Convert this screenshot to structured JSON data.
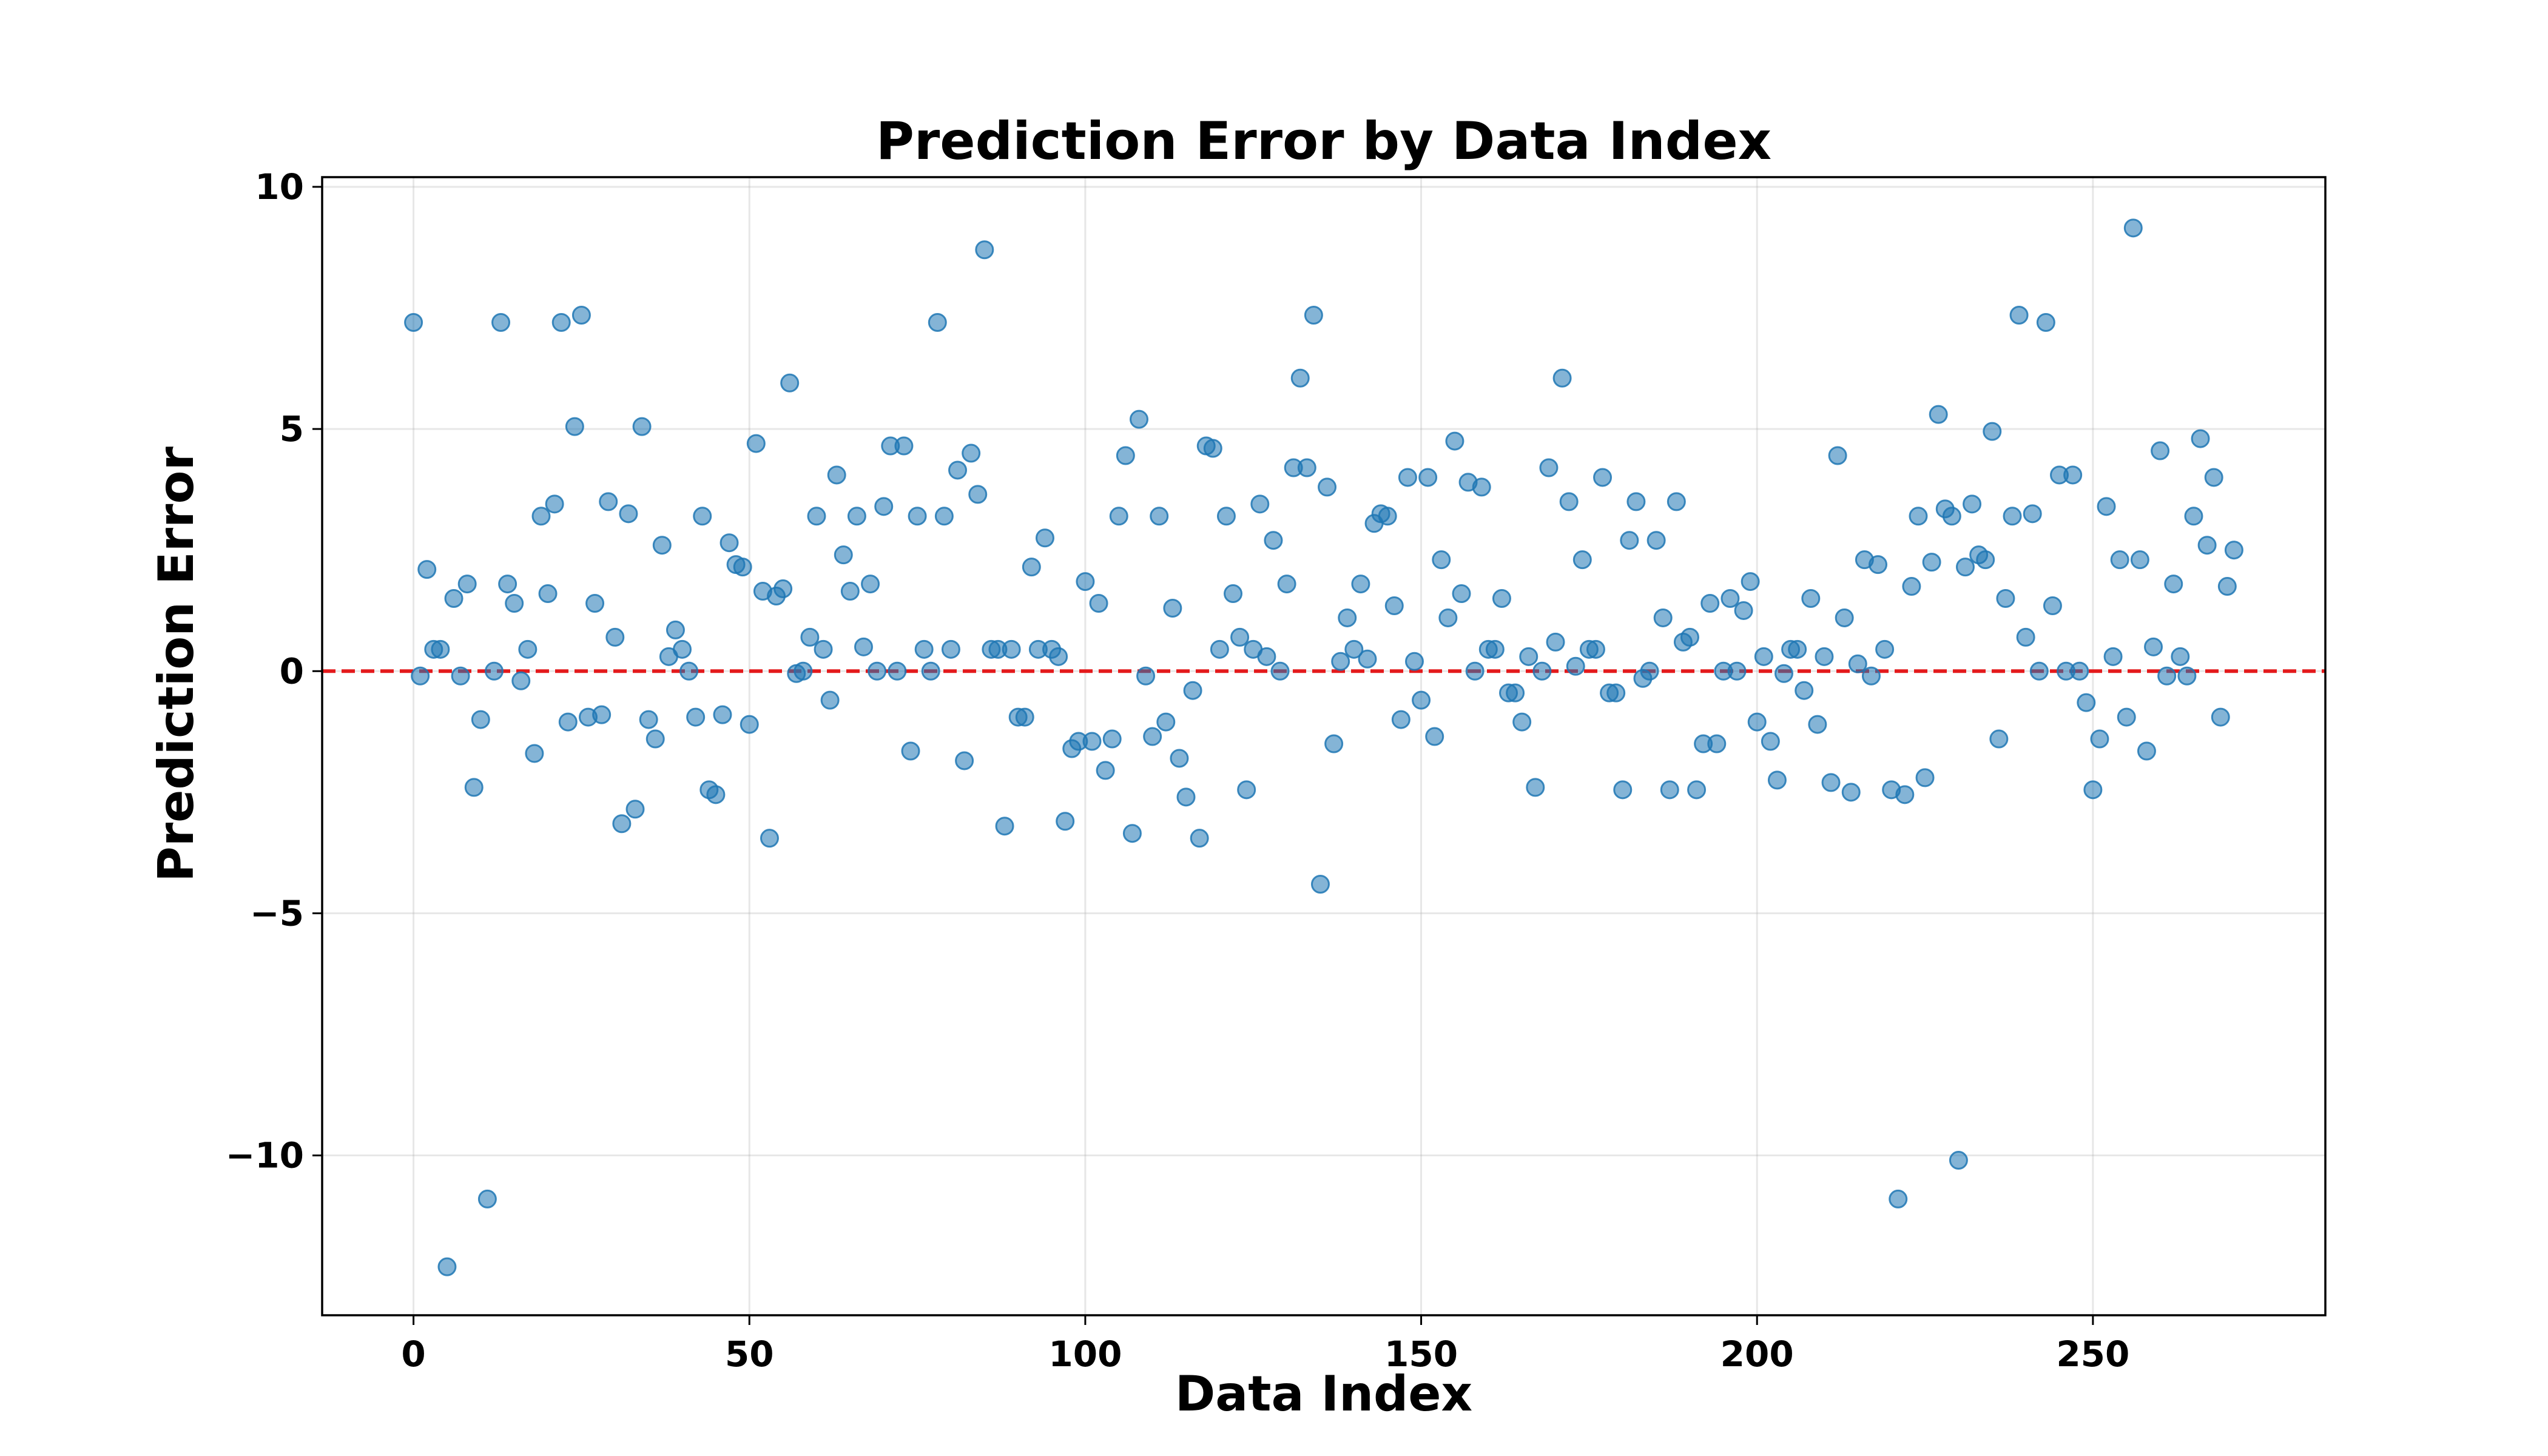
{
  "chart_data": {
    "type": "scatter",
    "title": "Prediction Error by Data Index",
    "xlabel": "Data Index",
    "ylabel": "Prediction Error",
    "xlim": [
      -13.6,
      284.6
    ],
    "ylim": [
      -13.3,
      10.2
    ],
    "xticks": [
      0,
      50,
      100,
      150,
      200,
      250
    ],
    "yticks": [
      -10,
      -5,
      0,
      5,
      10
    ],
    "grid": true,
    "reference_line": {
      "y": 0,
      "style": "dashed",
      "color": "#e41a1c"
    },
    "point_color": "#1f77b4",
    "x": [
      0,
      1,
      2,
      3,
      4,
      5,
      6,
      7,
      8,
      9,
      10,
      11,
      12,
      13,
      14,
      15,
      16,
      17,
      18,
      19,
      20,
      21,
      22,
      23,
      24,
      25,
      26,
      27,
      28,
      29,
      30,
      31,
      32,
      33,
      34,
      35,
      36,
      37,
      38,
      39,
      40,
      41,
      42,
      43,
      44,
      45,
      46,
      47,
      48,
      49,
      50,
      51,
      52,
      53,
      54,
      55,
      56,
      57,
      58,
      59,
      60,
      61,
      62,
      63,
      64,
      65,
      66,
      67,
      68,
      69,
      70,
      71,
      72,
      73,
      74,
      75,
      76,
      77,
      78,
      79,
      80,
      81,
      82,
      83,
      84,
      85,
      86,
      87,
      88,
      89,
      90,
      91,
      92,
      93,
      94,
      95,
      96,
      97,
      98,
      99,
      100,
      101,
      102,
      103,
      104,
      105,
      106,
      107,
      108,
      109,
      110,
      111,
      112,
      113,
      114,
      115,
      116,
      117,
      118,
      119,
      120,
      121,
      122,
      123,
      124,
      125,
      126,
      127,
      128,
      129,
      130,
      131,
      132,
      133,
      134,
      135,
      136,
      137,
      138,
      139,
      140,
      141,
      142,
      143,
      144,
      145,
      146,
      147,
      148,
      149,
      150,
      151,
      152,
      153,
      154,
      155,
      156,
      157,
      158,
      159,
      160,
      161,
      162,
      163,
      164,
      165,
      166,
      167,
      168,
      169,
      170,
      171,
      172,
      173,
      174,
      175,
      176,
      177,
      178,
      179,
      180,
      181,
      182,
      183,
      184,
      185,
      186,
      187,
      188,
      189,
      190,
      191,
      192,
      193,
      194,
      195,
      196,
      197,
      198,
      199,
      200,
      201,
      202,
      203,
      204,
      205,
      206,
      207,
      208,
      209,
      210,
      211,
      212,
      213,
      214,
      215,
      216,
      217,
      218,
      219,
      220,
      221,
      222,
      223,
      224,
      225,
      226,
      227,
      228,
      229,
      230,
      231,
      232,
      233,
      234,
      235,
      236,
      237,
      238,
      239,
      240,
      241,
      242,
      243,
      244,
      245,
      246,
      247,
      248,
      249,
      250,
      251,
      252,
      253,
      254,
      255,
      256,
      257,
      258,
      259,
      260,
      261,
      262,
      263,
      264,
      265,
      266,
      267,
      268,
      269,
      270,
      271
    ],
    "y": [
      7.2,
      -0.1,
      2.1,
      0.45,
      0.45,
      -12.3,
      1.5,
      -0.1,
      1.8,
      -2.4,
      -1.0,
      -10.9,
      0.0,
      7.2,
      1.8,
      1.4,
      -0.2,
      0.45,
      -1.7,
      3.2,
      1.6,
      3.45,
      7.2,
      -1.05,
      5.05,
      7.35,
      -0.95,
      1.4,
      -0.9,
      3.5,
      0.7,
      -3.15,
      3.25,
      -2.85,
      5.05,
      -1.0,
      -1.4,
      2.6,
      0.3,
      0.85,
      0.45,
      0.0,
      -0.95,
      3.2,
      -2.45,
      -2.55,
      -0.9,
      2.65,
      2.2,
      2.15,
      -1.1,
      4.7,
      1.65,
      -3.45,
      1.55,
      1.7,
      5.95,
      -0.05,
      0.0,
      0.7,
      3.2,
      0.45,
      -0.6,
      4.05,
      2.4,
      1.65,
      3.2,
      0.5,
      1.8,
      0.0,
      3.4,
      4.65,
      0.0,
      4.65,
      -1.65,
      3.2,
      0.45,
      0.0,
      7.2,
      3.2,
      0.45,
      4.15,
      -1.85,
      4.5,
      3.65,
      8.7,
      0.45,
      0.45,
      -3.2,
      0.45,
      -0.95,
      -0.95,
      2.15,
      0.45,
      2.75,
      0.45,
      0.3,
      -3.1,
      -1.6,
      -1.45,
      1.85,
      -1.45,
      1.4,
      -2.05,
      -1.4,
      3.2,
      4.45,
      -3.35,
      5.2,
      -0.1,
      -1.35,
      3.2,
      -1.05,
      1.3,
      -1.8,
      -2.6,
      -0.4,
      -3.45,
      4.65,
      4.6,
      0.45,
      3.2,
      1.6,
      0.7,
      -2.45,
      0.45,
      3.45,
      0.3,
      2.7,
      0.0,
      1.8,
      4.2,
      6.05,
      4.2,
      7.35,
      -4.4,
      3.8,
      -1.5,
      0.2,
      1.1,
      0.45,
      1.8,
      0.25,
      3.05,
      3.25,
      3.2,
      1.35,
      -1.0,
      4.0,
      0.2,
      -0.6,
      4.0,
      -1.35,
      2.3,
      1.1,
      4.75,
      1.6,
      3.9,
      0.0,
      3.8,
      0.45,
      0.45,
      1.5,
      -0.45,
      -0.45,
      -1.05,
      0.3,
      -2.4,
      0.0,
      4.2,
      0.6,
      6.05,
      3.5,
      0.1,
      2.3,
      0.45,
      0.45,
      4.0,
      -0.45,
      -0.45,
      -2.45,
      2.7,
      3.5,
      -0.15,
      0.0,
      2.7,
      1.1,
      -2.45,
      3.5,
      0.6,
      0.7,
      -2.45,
      -1.5,
      1.4,
      -1.5,
      0.0,
      1.5,
      0.0,
      1.25,
      1.85,
      -1.05,
      0.3,
      -1.45,
      -2.25,
      -0.05,
      0.45,
      0.45,
      -0.4,
      1.5,
      -1.1,
      0.3,
      -2.3,
      4.45,
      1.1,
      -2.5,
      0.15,
      2.3,
      -0.1,
      2.2,
      0.45,
      -2.45,
      -10.9,
      -2.55,
      1.75,
      3.2,
      -2.2,
      2.25,
      5.3,
      3.35,
      3.2,
      -10.1,
      2.15,
      3.45,
      2.4,
      2.3,
      4.95,
      -1.4,
      1.5,
      3.2,
      7.35,
      0.7,
      3.25,
      0.0,
      7.2,
      1.35,
      4.05,
      0.0,
      4.05,
      0.0,
      -0.65,
      -2.45,
      -1.4,
      3.4,
      0.3,
      2.3,
      -0.95,
      9.15,
      2.3,
      -1.65,
      0.5,
      4.55,
      -0.1,
      1.8,
      0.3,
      -0.1,
      3.2,
      4.8,
      2.6,
      4.0,
      -0.95,
      1.75,
      2.5
    ]
  }
}
